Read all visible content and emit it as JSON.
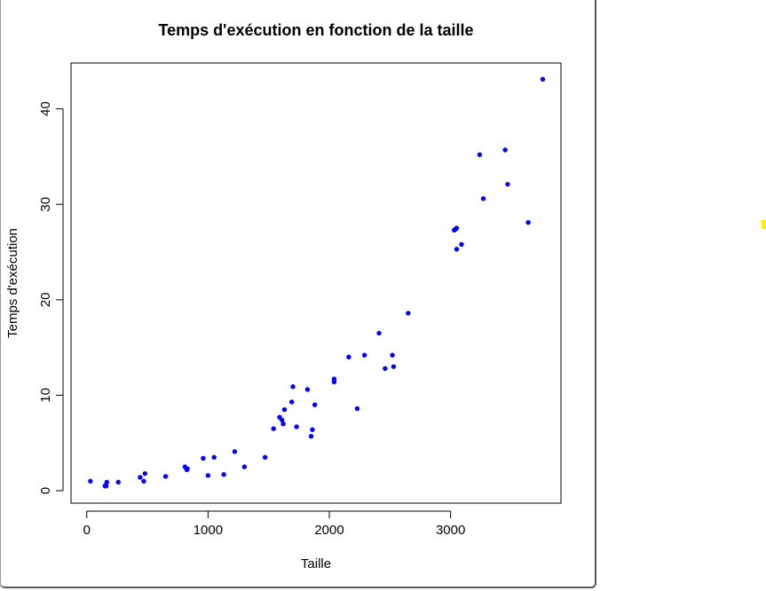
{
  "chart_data": {
    "type": "scatter",
    "title": "Temps d'exécution en fonction de la taille",
    "xlabel": "Taille",
    "ylabel": "Temps d'exécution",
    "xlim": [
      -130,
      3910
    ],
    "ylim": [
      -1.3,
      44.8
    ],
    "xticks": [
      0,
      1000,
      2000,
      3000
    ],
    "yticks": [
      0,
      10,
      20,
      30,
      40
    ],
    "point_color": "#0000ff",
    "grid": false,
    "legend": "none",
    "series": [
      {
        "x": [
          30,
          150,
          160,
          165,
          260,
          440,
          470,
          480,
          650,
          810,
          825,
          830,
          960,
          1000,
          1050,
          1130,
          1220,
          1300,
          1470,
          1540,
          1590,
          1610,
          1620,
          1630,
          1690,
          1700,
          1730,
          1820,
          1850,
          1860,
          1880,
          2040,
          2040,
          2160,
          2230,
          2290,
          2410,
          2460,
          2520,
          2530,
          2650,
          3030,
          3040,
          3050,
          3050,
          3090,
          3240,
          3270,
          3450,
          3470,
          3640,
          3760
        ],
        "y": [
          1.0,
          0.5,
          0.5,
          0.9,
          0.9,
          1.4,
          1.0,
          1.8,
          1.5,
          2.5,
          2.2,
          2.3,
          3.4,
          1.6,
          3.5,
          1.7,
          4.1,
          2.5,
          3.5,
          6.5,
          7.7,
          7.4,
          7.0,
          8.5,
          9.3,
          10.9,
          6.7,
          10.6,
          5.7,
          6.4,
          9.0,
          11.7,
          11.4,
          14.0,
          8.6,
          14.2,
          16.5,
          12.8,
          14.2,
          13.0,
          18.6,
          27.3,
          27.4,
          25.3,
          27.5,
          25.8,
          35.2,
          30.6,
          35.7,
          32.1,
          28.1,
          43.1
        ]
      }
    ]
  }
}
